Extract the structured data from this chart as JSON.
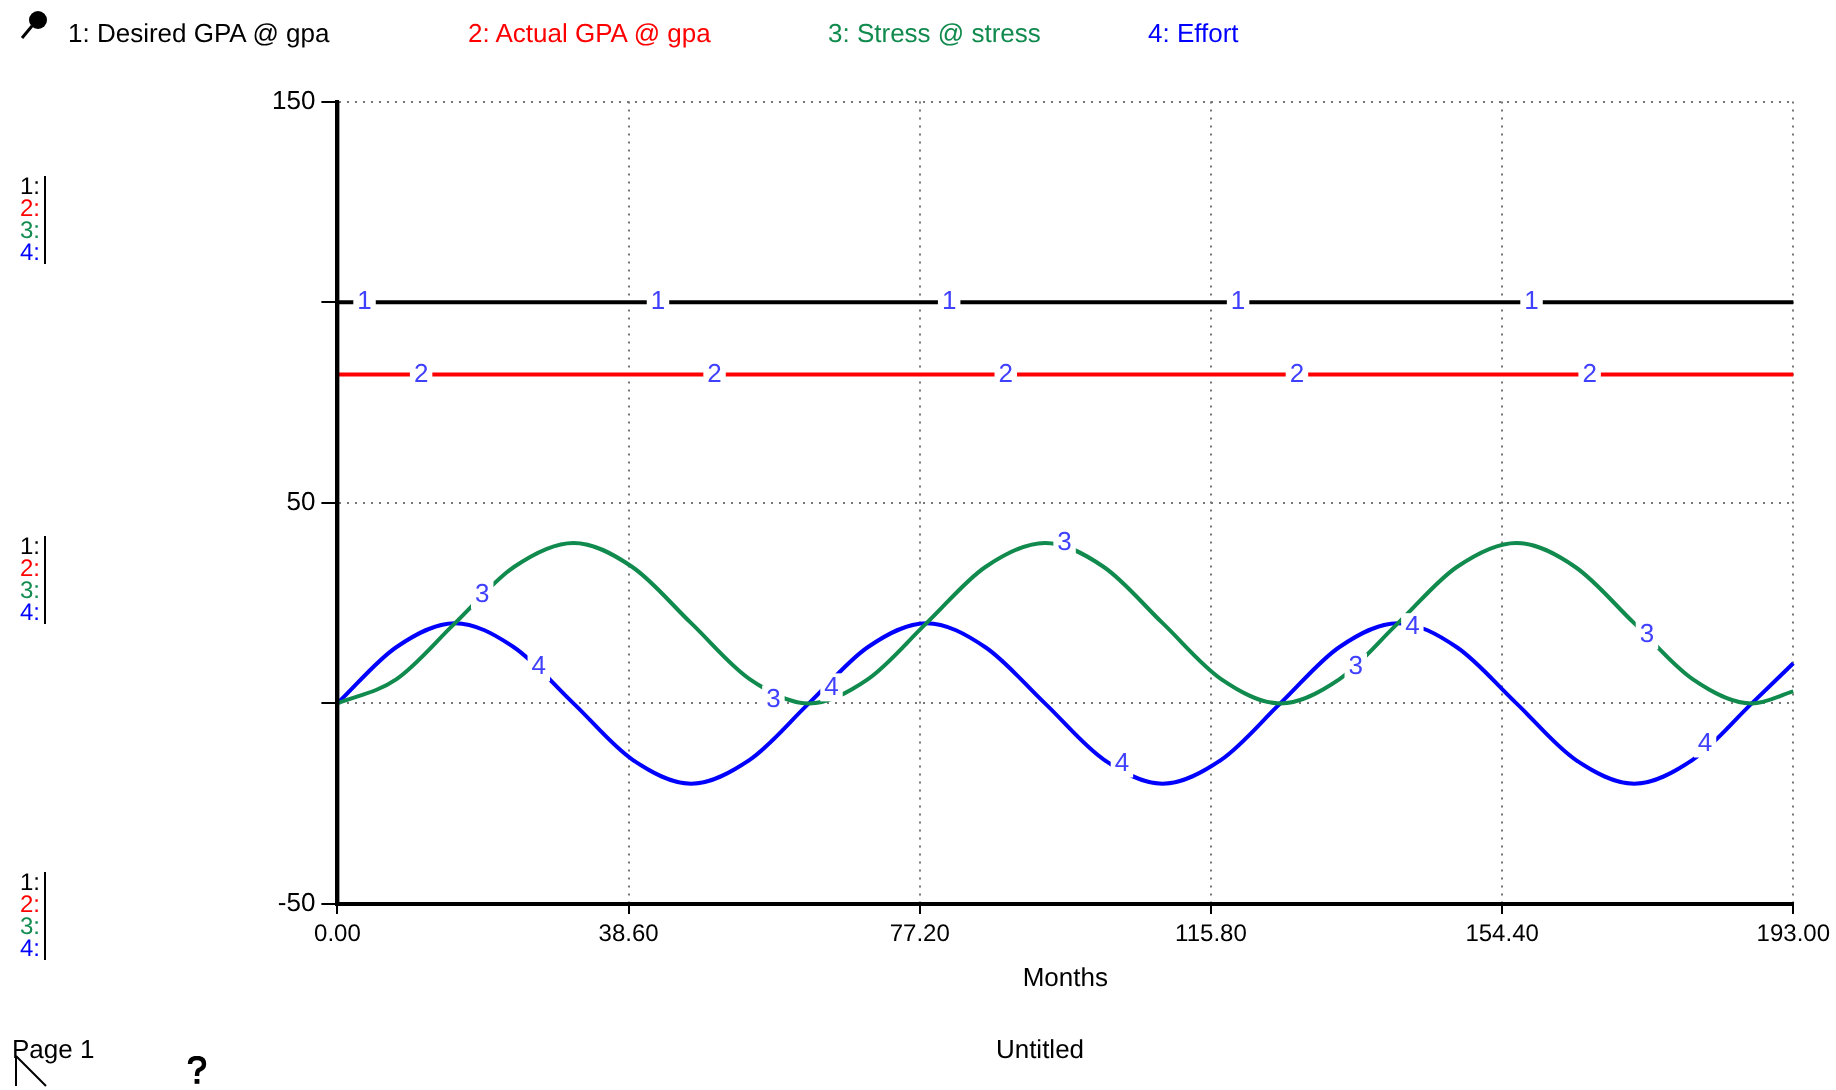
{
  "chart_data": {
    "type": "line",
    "title": "Untitled",
    "xlabel": "Months",
    "x": [
      0,
      7.8,
      15.6,
      23.4,
      31.3,
      39.1,
      46.9,
      54.7,
      62.5,
      70.3,
      78.1,
      85.9,
      93.8,
      101.6,
      109.4,
      117.2,
      125,
      132.8,
      140.6,
      148.4,
      156.3,
      164.1,
      171.9,
      179.7,
      187.5,
      193
    ],
    "series": [
      {
        "name": "1: Desired GPA @ gpa",
        "color": "#000000",
        "values": [
          100,
          100,
          100,
          100,
          100,
          100,
          100,
          100,
          100,
          100,
          100,
          100,
          100,
          100,
          100,
          100,
          100,
          100,
          100,
          100,
          100,
          100,
          100,
          100,
          100,
          100
        ]
      },
      {
        "name": "2: Actual GPA @ gpa",
        "color": "#ff0000",
        "values": [
          82,
          82,
          82,
          82,
          82,
          82,
          82,
          82,
          82,
          82,
          82,
          82,
          82,
          82,
          82,
          82,
          82,
          82,
          82,
          82,
          82,
          82,
          82,
          82,
          82,
          82
        ]
      },
      {
        "name": "3: Stress @ stress",
        "color": "#118a4e",
        "values": [
          0,
          6,
          20,
          34,
          40,
          34,
          20,
          6,
          0,
          6,
          20,
          34,
          40,
          34,
          20,
          6,
          0,
          6,
          20,
          34,
          40,
          34,
          20,
          6,
          0,
          3
        ]
      },
      {
        "name": "4: Effort",
        "color": "#0000ff",
        "values": [
          0,
          14,
          20,
          14,
          0,
          -14,
          -20,
          -14,
          0,
          14,
          20,
          14,
          0,
          -14,
          -20,
          -14,
          0,
          14,
          20,
          14,
          0,
          -14,
          -20,
          -14,
          0,
          10
        ]
      }
    ],
    "xlim": [
      0,
      193
    ],
    "xticks": [
      {
        "value": 0,
        "label": "0.00"
      },
      {
        "value": 38.6,
        "label": "38.60"
      },
      {
        "value": 77.2,
        "label": "77.20"
      },
      {
        "value": 115.8,
        "label": "115.80"
      },
      {
        "value": 154.4,
        "label": "154.40"
      },
      {
        "value": 193,
        "label": "193.00"
      }
    ],
    "ylim": [
      -50,
      150
    ],
    "yticks": [
      -50,
      {
        "value": 0,
        "label": null
      },
      50,
      {
        "value": 100,
        "label": null
      },
      150
    ],
    "grid": true,
    "legend": "top",
    "marker": "none",
    "line_style": "solid",
    "annotations": [
      {
        "text": "1",
        "x": 3.6,
        "y": 100
      },
      {
        "text": "1",
        "x": 42.5,
        "y": 100
      },
      {
        "text": "1",
        "x": 81.1,
        "y": 100
      },
      {
        "text": "1",
        "x": 119.4,
        "y": 100
      },
      {
        "text": "1",
        "x": 158.3,
        "y": 100
      },
      {
        "text": "2",
        "x": 11.1,
        "y": 82
      },
      {
        "text": "2",
        "x": 50,
        "y": 82
      },
      {
        "text": "2",
        "x": 88.6,
        "y": 82
      },
      {
        "text": "2",
        "x": 127.2,
        "y": 82
      },
      {
        "text": "2",
        "x": 166,
        "y": 82
      },
      {
        "text": "3",
        "x": 19.2,
        "y": 27
      },
      {
        "text": "3",
        "x": 57.8,
        "y": 1
      },
      {
        "text": "3",
        "x": 96.4,
        "y": 40
      },
      {
        "text": "3",
        "x": 135,
        "y": 9
      },
      {
        "text": "3",
        "x": 173.6,
        "y": 17
      },
      {
        "text": "4",
        "x": 26.7,
        "y": 9
      },
      {
        "text": "4",
        "x": 65.5,
        "y": 4
      },
      {
        "text": "4",
        "x": 104,
        "y": -15
      },
      {
        "text": "4",
        "x": 142.5,
        "y": 19
      },
      {
        "text": "4",
        "x": 181.3,
        "y": -10
      },
      "1:",
      "2:",
      "3:",
      "4:",
      "1:",
      "2:",
      "3:",
      "4:",
      "1:",
      "2:",
      "3:",
      "4:",
      "Page 1"
    ]
  }
}
